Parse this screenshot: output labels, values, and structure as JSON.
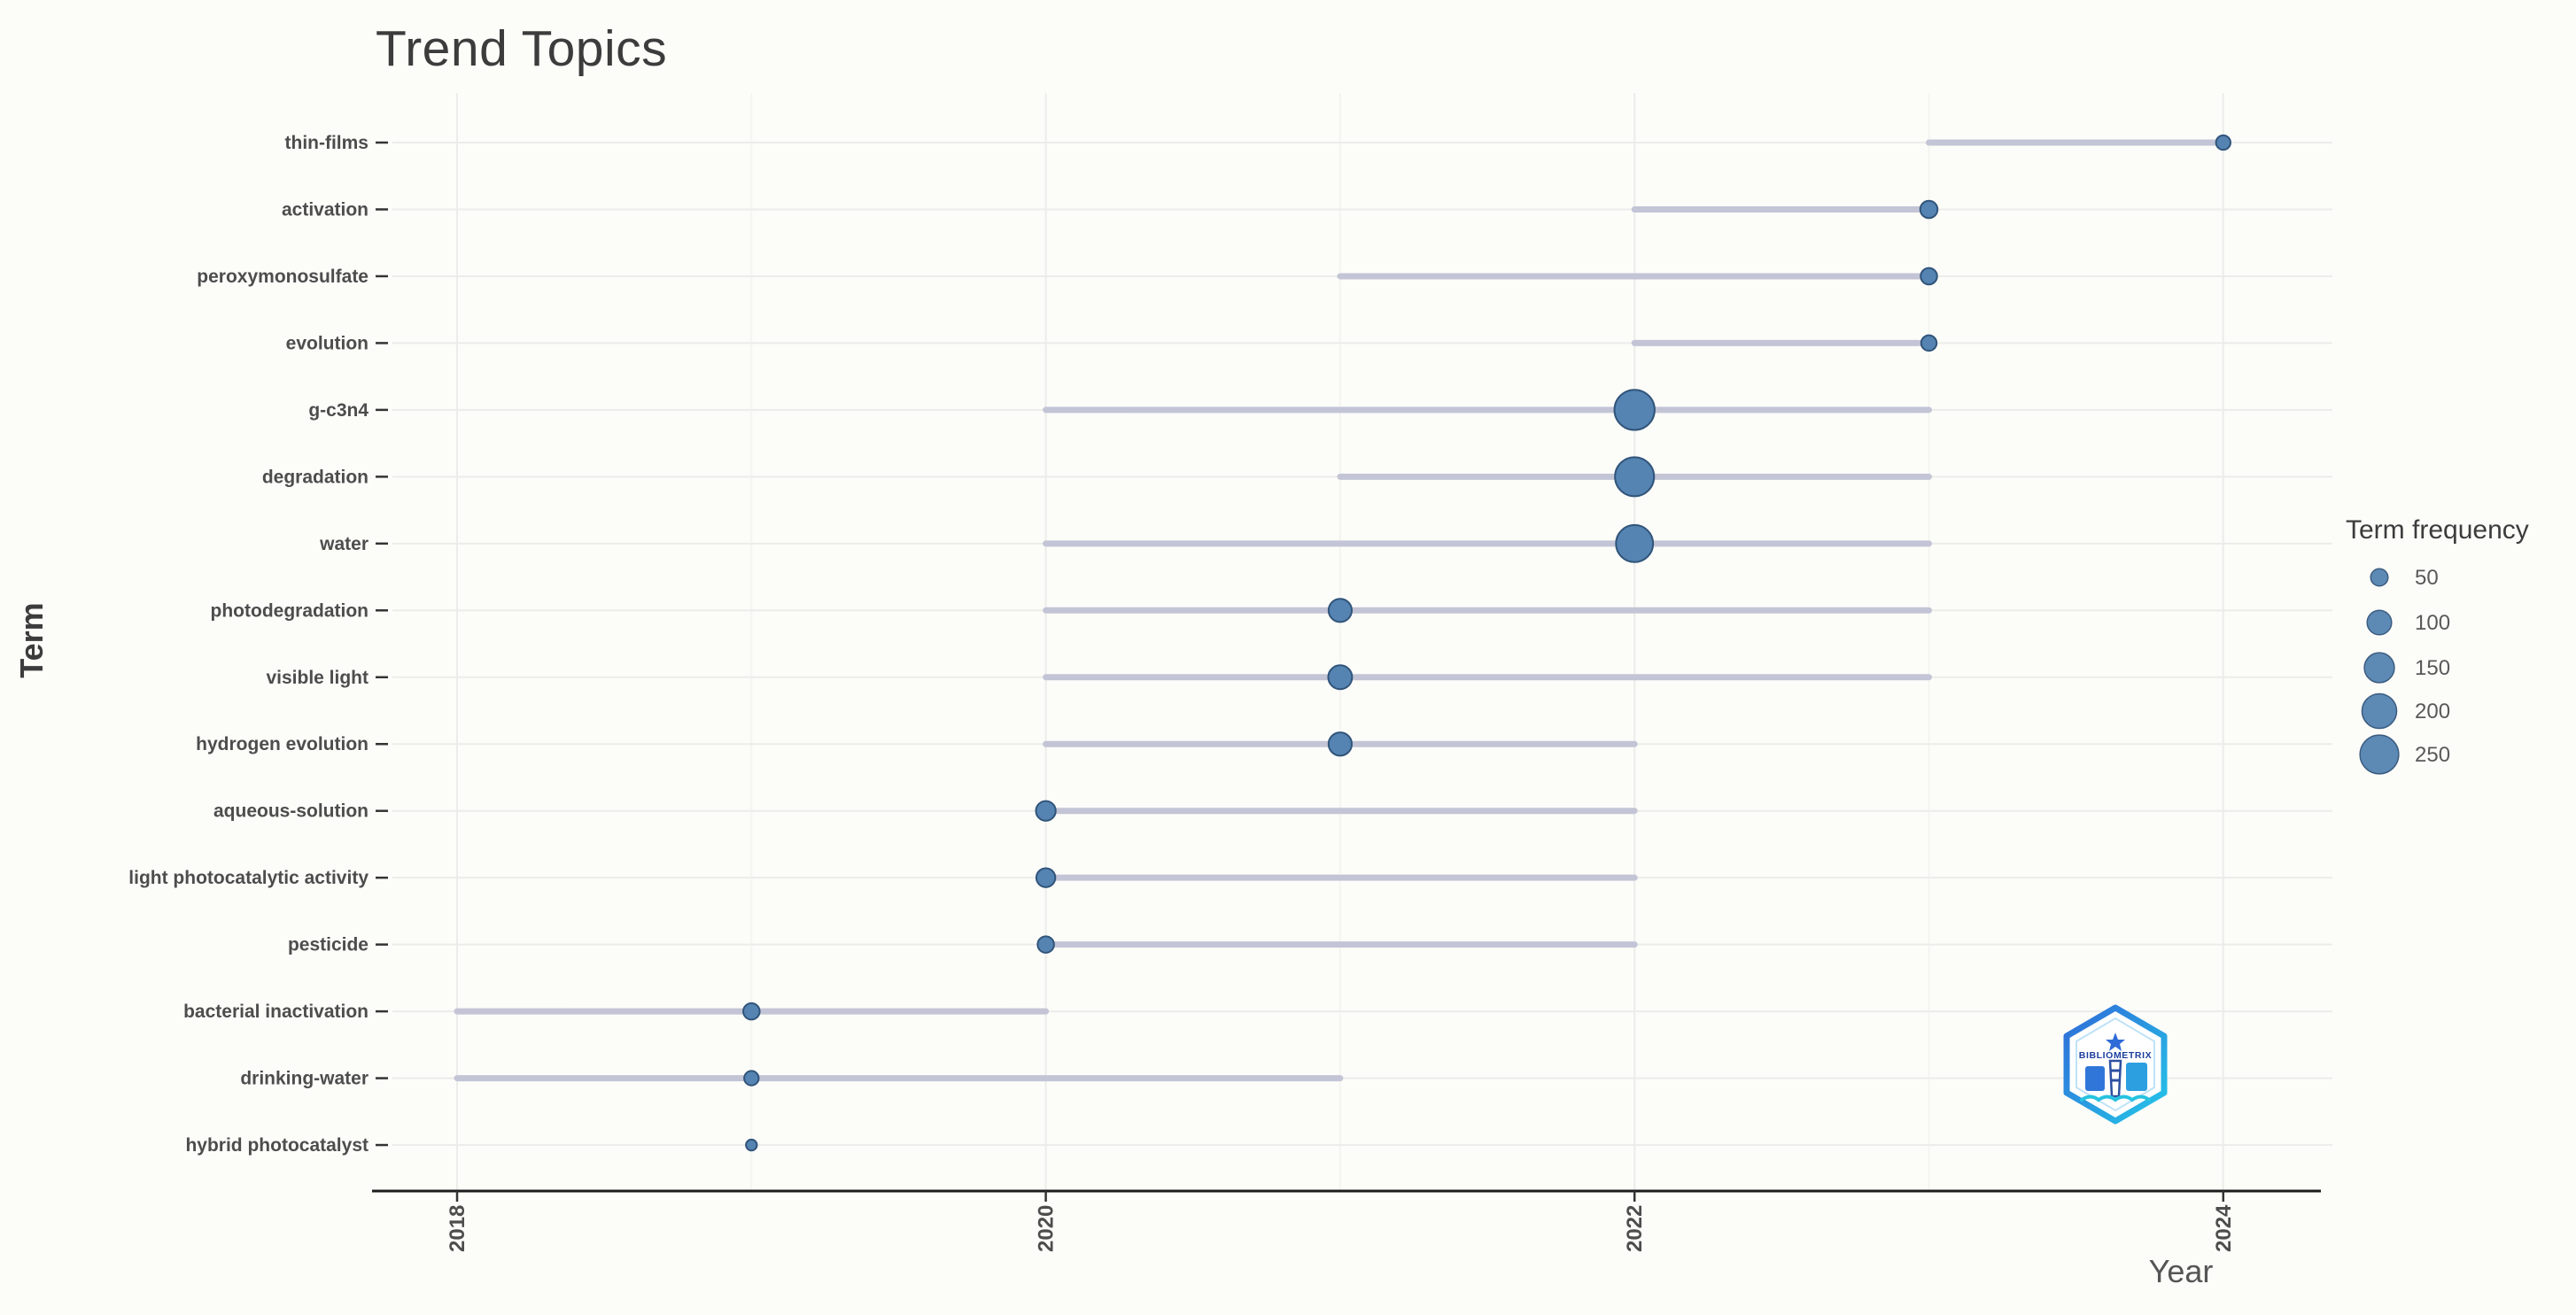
{
  "chart_data": {
    "type": "scatter",
    "title": "Trend Topics",
    "xlabel": "Year",
    "ylabel": "Term",
    "x_ticks": [
      2018,
      2020,
      2022,
      2024
    ],
    "x_minor_ticks": [
      2019,
      2021,
      2023
    ],
    "x_range": [
      2017.7,
      2024.35
    ],
    "grid": true,
    "legend": {
      "title": "Term frequency",
      "position": "right",
      "values": [
        50,
        100,
        150,
        200,
        250
      ]
    },
    "terms": [
      {
        "term": "thin-films",
        "year_q1": 2023,
        "year_med": 2024,
        "year_q3": 2024,
        "freq": 35
      },
      {
        "term": "activation",
        "year_q1": 2022,
        "year_med": 2023,
        "year_q3": 2023,
        "freq": 50
      },
      {
        "term": "peroxymonosulfate",
        "year_q1": 2021,
        "year_med": 2023,
        "year_q3": 2023,
        "freq": 45
      },
      {
        "term": "evolution",
        "year_q1": 2022,
        "year_med": 2023,
        "year_q3": 2023,
        "freq": 40
      },
      {
        "term": "g-c3n4",
        "year_q1": 2020,
        "year_med": 2022,
        "year_q3": 2023,
        "freq": 270
      },
      {
        "term": "degradation",
        "year_q1": 2021,
        "year_med": 2022,
        "year_q3": 2023,
        "freq": 255
      },
      {
        "term": "water",
        "year_q1": 2020,
        "year_med": 2022,
        "year_q3": 2023,
        "freq": 230
      },
      {
        "term": "photodegradation",
        "year_q1": 2020,
        "year_med": 2021,
        "year_q3": 2023,
        "freq": 90
      },
      {
        "term": "visible light",
        "year_q1": 2020,
        "year_med": 2021,
        "year_q3": 2023,
        "freq": 95
      },
      {
        "term": "hydrogen evolution",
        "year_q1": 2020,
        "year_med": 2021,
        "year_q3": 2022,
        "freq": 90
      },
      {
        "term": "aqueous-solution",
        "year_q1": 2020,
        "year_med": 2020,
        "year_q3": 2022,
        "freq": 65
      },
      {
        "term": "light photocatalytic activity",
        "year_q1": 2020,
        "year_med": 2020,
        "year_q3": 2022,
        "freq": 60
      },
      {
        "term": "pesticide",
        "year_q1": 2020,
        "year_med": 2020,
        "year_q3": 2022,
        "freq": 45
      },
      {
        "term": "bacterial inactivation",
        "year_q1": 2018,
        "year_med": 2019,
        "year_q3": 2020,
        "freq": 45
      },
      {
        "term": "drinking-water",
        "year_q1": 2018,
        "year_med": 2019,
        "year_q3": 2021,
        "freq": 35
      },
      {
        "term": "hybrid photocatalyst",
        "year_q1": 2019,
        "year_med": 2019,
        "year_q3": 2019,
        "freq": 20
      }
    ]
  },
  "logo": {
    "text": "BIBLIOMETRIX"
  },
  "colors": {
    "dot_fill": "#5584b2",
    "dot_stroke": "#31547a",
    "range_line": "#c3c5d6",
    "grid_major": "#ececea",
    "grid_minor": "#f4f4f1",
    "axis_line": "#1c1c1c",
    "tick": "#333333",
    "title_text": "#3c3c3c",
    "label_text": "#4d4d4d",
    "axis_title_text": "#555555",
    "legend_text": "#595959",
    "background": "#fcfcf9",
    "logo_blue": "#2f6bd8",
    "logo_teal": "#25c6e8"
  }
}
